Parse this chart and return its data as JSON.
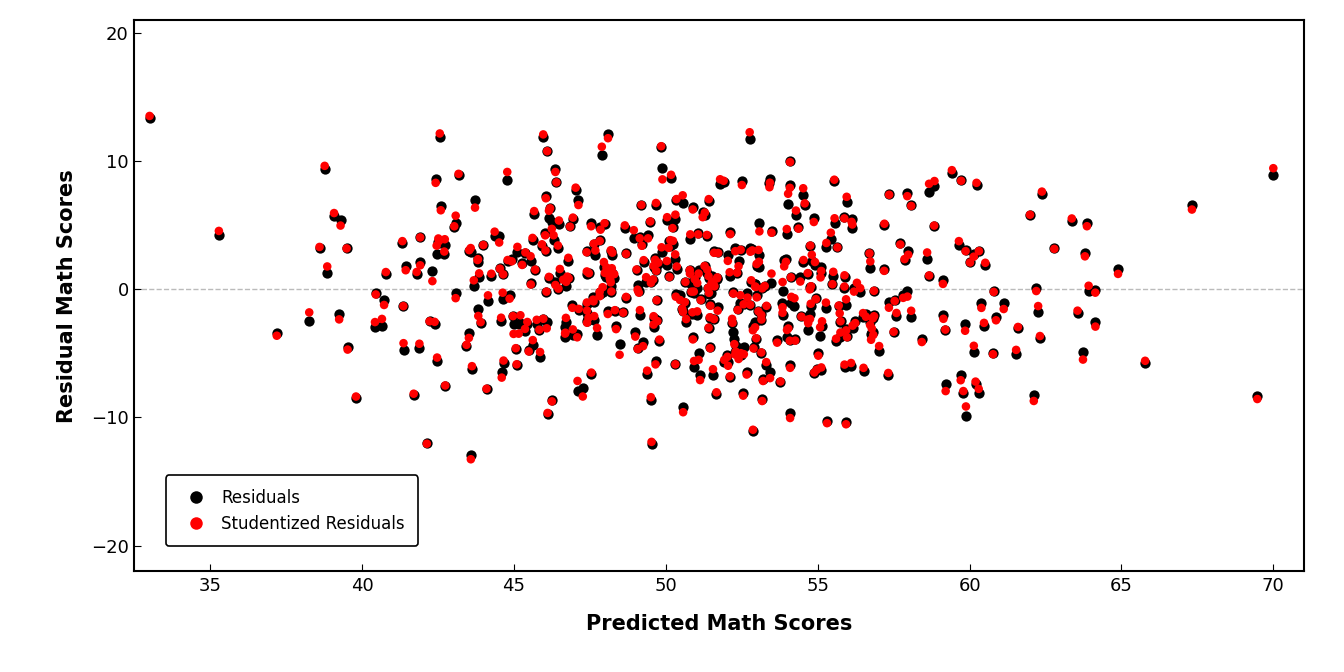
{
  "title": "",
  "xlabel": "Predicted Math Scores",
  "ylabel": "Residual Math Scores",
  "xlim": [
    32.5,
    71
  ],
  "ylim": [
    -22,
    21
  ],
  "xticks": [
    35,
    40,
    45,
    50,
    55,
    60,
    65,
    70
  ],
  "yticks": [
    -20,
    -10,
    0,
    10,
    20
  ],
  "hline_y": 0,
  "hline_color": "#bbbbbb",
  "hline_style": "--",
  "dot_black_color": "#000000",
  "dot_red_color": "#ff0000",
  "dot_size_black": 55,
  "dot_size_red": 38,
  "background_color": "#ffffff",
  "legend_labels": [
    "Residuals",
    "Studentized Residuals"
  ],
  "legend_colors": [
    "#000000",
    "#ff0000"
  ],
  "seed": 42,
  "n_points": 500,
  "figsize": [
    13.44,
    6.72
  ],
  "dpi": 100
}
